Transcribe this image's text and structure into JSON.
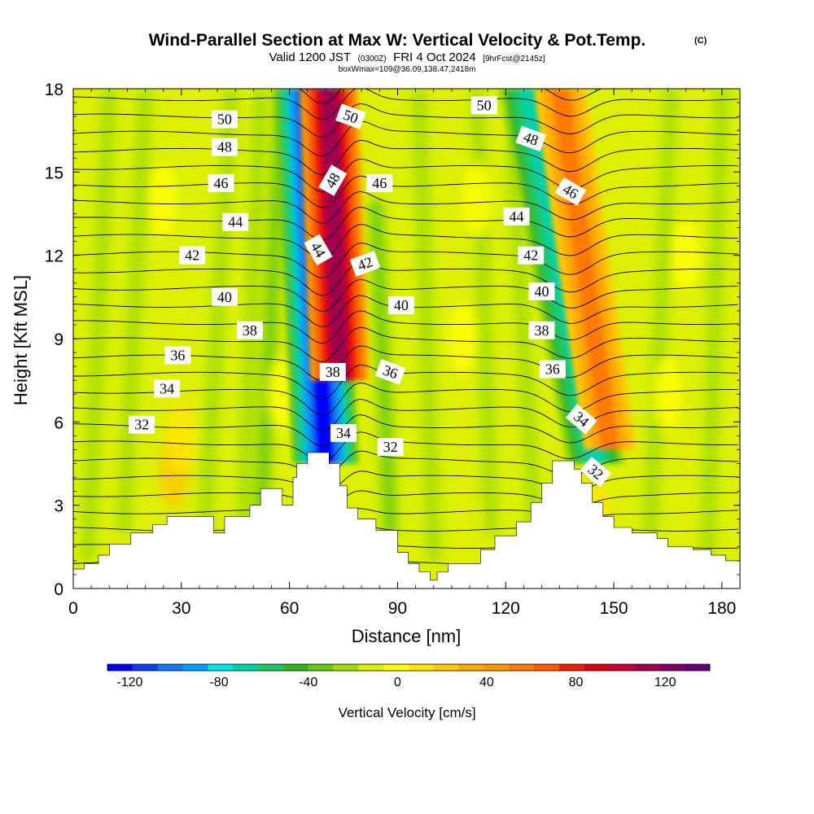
{
  "title": "Wind-Parallel Section at Max W: Vertical Velocity & Pot.Temp.",
  "title_mark": "(C)",
  "subtitle_parts": [
    "Valid 1200 JST",
    "(0300Z)",
    "FRI 4 Oct 2024",
    "[9hrFcst@2145z]"
  ],
  "subtitle2": "boxWmax=109@36.09,138.47,2418m",
  "chart_data": {
    "type": "heatmap",
    "xlabel": "Distance [nm]",
    "ylabel": "Height [Kft MSL]",
    "xlim": [
      0,
      185
    ],
    "ylim": [
      0,
      18
    ],
    "x_ticks": [
      0,
      30,
      60,
      90,
      120,
      150,
      180
    ],
    "y_ticks": [
      0,
      3,
      6,
      9,
      12,
      15,
      18
    ],
    "colorbar": {
      "label": "Vertical Velocity [cm/s]",
      "range": [
        -130,
        140
      ],
      "tick_values": [
        -120,
        -80,
        -40,
        0,
        40,
        80,
        120
      ],
      "tick_labels": [
        "-120",
        "-80",
        "-40",
        "0",
        "40",
        "80",
        "120"
      ],
      "colors": [
        "#0000ff",
        "#0a3cf5",
        "#1478f0",
        "#00a0ff",
        "#00e6e6",
        "#00d2aa",
        "#1ec864",
        "#32b41e",
        "#64c814",
        "#a0dc00",
        "#dcf000",
        "#ffff00",
        "#ffe600",
        "#ffc800",
        "#ffaa00",
        "#ff9600",
        "#ff7800",
        "#ff5a00",
        "#f01e00",
        "#dc0014",
        "#c8003c",
        "#a00050",
        "#820064",
        "#640078"
      ]
    },
    "vertical_velocity_features": [
      {
        "kind": "downdraft",
        "x_bottom": 70,
        "x_top": 65,
        "y_bottom": 4.5,
        "y_top": 18,
        "peak": -120
      },
      {
        "kind": "updraft",
        "x_bottom": 74,
        "x_top": 71,
        "y_bottom": 7.5,
        "y_top": 18,
        "peak": 109
      },
      {
        "kind": "downdraft",
        "x_bottom": 145,
        "x_top": 126,
        "y_bottom": 4.5,
        "y_top": 18,
        "peak": -70
      },
      {
        "kind": "updraft",
        "x_bottom": 149,
        "x_top": 135,
        "y_bottom": 5,
        "y_top": 18,
        "peak": 50
      }
    ],
    "potential_temperature_labels": [
      {
        "value": "50",
        "x": 42,
        "y": 16.9,
        "rot": 0
      },
      {
        "value": "48",
        "x": 42,
        "y": 15.9,
        "rot": 0
      },
      {
        "value": "46",
        "x": 41,
        "y": 14.6,
        "rot": 0
      },
      {
        "value": "44",
        "x": 45,
        "y": 13.2,
        "rot": 0
      },
      {
        "value": "42",
        "x": 33,
        "y": 12.0,
        "rot": 0
      },
      {
        "value": "40",
        "x": 42,
        "y": 10.5,
        "rot": 0
      },
      {
        "value": "38",
        "x": 49,
        "y": 9.3,
        "rot": 0
      },
      {
        "value": "36",
        "x": 29,
        "y": 8.4,
        "rot": 0
      },
      {
        "value": "34",
        "x": 26,
        "y": 7.2,
        "rot": 0
      },
      {
        "value": "32",
        "x": 19,
        "y": 5.9,
        "rot": 0
      },
      {
        "value": "50",
        "x": 77,
        "y": 17.0,
        "rot": 20
      },
      {
        "value": "48",
        "x": 72,
        "y": 14.7,
        "rot": -60
      },
      {
        "value": "46",
        "x": 85,
        "y": 14.6,
        "rot": 0
      },
      {
        "value": "44",
        "x": 68,
        "y": 12.2,
        "rot": 60
      },
      {
        "value": "42",
        "x": 81,
        "y": 11.7,
        "rot": -20
      },
      {
        "value": "40",
        "x": 91,
        "y": 10.2,
        "rot": 0
      },
      {
        "value": "38",
        "x": 72,
        "y": 7.8,
        "rot": 0
      },
      {
        "value": "36",
        "x": 88,
        "y": 7.8,
        "rot": 20
      },
      {
        "value": "34",
        "x": 75,
        "y": 5.6,
        "rot": 0
      },
      {
        "value": "32",
        "x": 88,
        "y": 5.1,
        "rot": 0
      },
      {
        "value": "50",
        "x": 114,
        "y": 17.4,
        "rot": 0
      },
      {
        "value": "48",
        "x": 127,
        "y": 16.2,
        "rot": 20
      },
      {
        "value": "46",
        "x": 138,
        "y": 14.3,
        "rot": 30
      },
      {
        "value": "44",
        "x": 123,
        "y": 13.4,
        "rot": 0
      },
      {
        "value": "42",
        "x": 127,
        "y": 12.0,
        "rot": 0
      },
      {
        "value": "40",
        "x": 130,
        "y": 10.7,
        "rot": 0
      },
      {
        "value": "38",
        "x": 130,
        "y": 9.3,
        "rot": 0
      },
      {
        "value": "36",
        "x": 133,
        "y": 7.9,
        "rot": 0
      },
      {
        "value": "34",
        "x": 141,
        "y": 6.1,
        "rot": 40
      },
      {
        "value": "32",
        "x": 145,
        "y": 4.2,
        "rot": 40
      }
    ],
    "terrain_profile": [
      [
        0,
        0.7
      ],
      [
        3,
        0.7
      ],
      [
        3,
        0.9
      ],
      [
        7,
        0.9
      ],
      [
        7,
        1.2
      ],
      [
        10,
        1.2
      ],
      [
        10,
        1.6
      ],
      [
        16,
        1.6
      ],
      [
        16,
        2.0
      ],
      [
        22,
        2.0
      ],
      [
        22,
        2.3
      ],
      [
        26,
        2.3
      ],
      [
        26,
        2.6
      ],
      [
        39,
        2.6
      ],
      [
        39,
        2.0
      ],
      [
        42,
        2.0
      ],
      [
        42,
        2.6
      ],
      [
        49,
        2.6
      ],
      [
        49,
        3.0
      ],
      [
        52,
        3.0
      ],
      [
        52,
        3.6
      ],
      [
        58,
        3.6
      ],
      [
        58,
        3.0
      ],
      [
        61,
        3.0
      ],
      [
        61,
        4.0
      ],
      [
        62,
        4.0
      ],
      [
        62,
        4.5
      ],
      [
        65,
        4.5
      ],
      [
        65,
        4.9
      ],
      [
        71,
        4.9
      ],
      [
        71,
        4.5
      ],
      [
        74,
        4.5
      ],
      [
        74,
        3.7
      ],
      [
        76,
        3.7
      ],
      [
        76,
        2.9
      ],
      [
        79,
        2.9
      ],
      [
        79,
        2.5
      ],
      [
        84,
        2.5
      ],
      [
        84,
        2.1
      ],
      [
        90,
        2.1
      ],
      [
        90,
        1.3
      ],
      [
        93,
        1.3
      ],
      [
        93,
        0.9
      ],
      [
        96,
        0.9
      ],
      [
        96,
        0.6
      ],
      [
        99,
        0.6
      ],
      [
        99,
        0.3
      ],
      [
        101,
        0.3
      ],
      [
        101,
        0.6
      ],
      [
        104,
        0.6
      ],
      [
        104,
        0.9
      ],
      [
        113,
        0.9
      ],
      [
        113,
        1.4
      ],
      [
        117,
        1.4
      ],
      [
        117,
        1.9
      ],
      [
        123,
        1.9
      ],
      [
        123,
        2.4
      ],
      [
        127,
        2.4
      ],
      [
        127,
        3.1
      ],
      [
        130,
        3.1
      ],
      [
        130,
        3.8
      ],
      [
        133,
        3.8
      ],
      [
        133,
        4.6
      ],
      [
        139,
        4.6
      ],
      [
        139,
        4.3
      ],
      [
        141,
        4.3
      ],
      [
        141,
        3.8
      ],
      [
        144,
        3.8
      ],
      [
        144,
        3.1
      ],
      [
        147,
        3.1
      ],
      [
        147,
        2.6
      ],
      [
        150,
        2.6
      ],
      [
        150,
        2.2
      ],
      [
        155,
        2.2
      ],
      [
        155,
        2.0
      ],
      [
        162,
        2.0
      ],
      [
        162,
        1.8
      ],
      [
        165,
        1.8
      ],
      [
        165,
        1.5
      ],
      [
        172,
        1.5
      ],
      [
        172,
        1.4
      ],
      [
        177,
        1.4
      ],
      [
        177,
        1.2
      ],
      [
        181,
        1.2
      ],
      [
        181,
        1.0
      ],
      [
        185,
        1.0
      ]
    ]
  }
}
